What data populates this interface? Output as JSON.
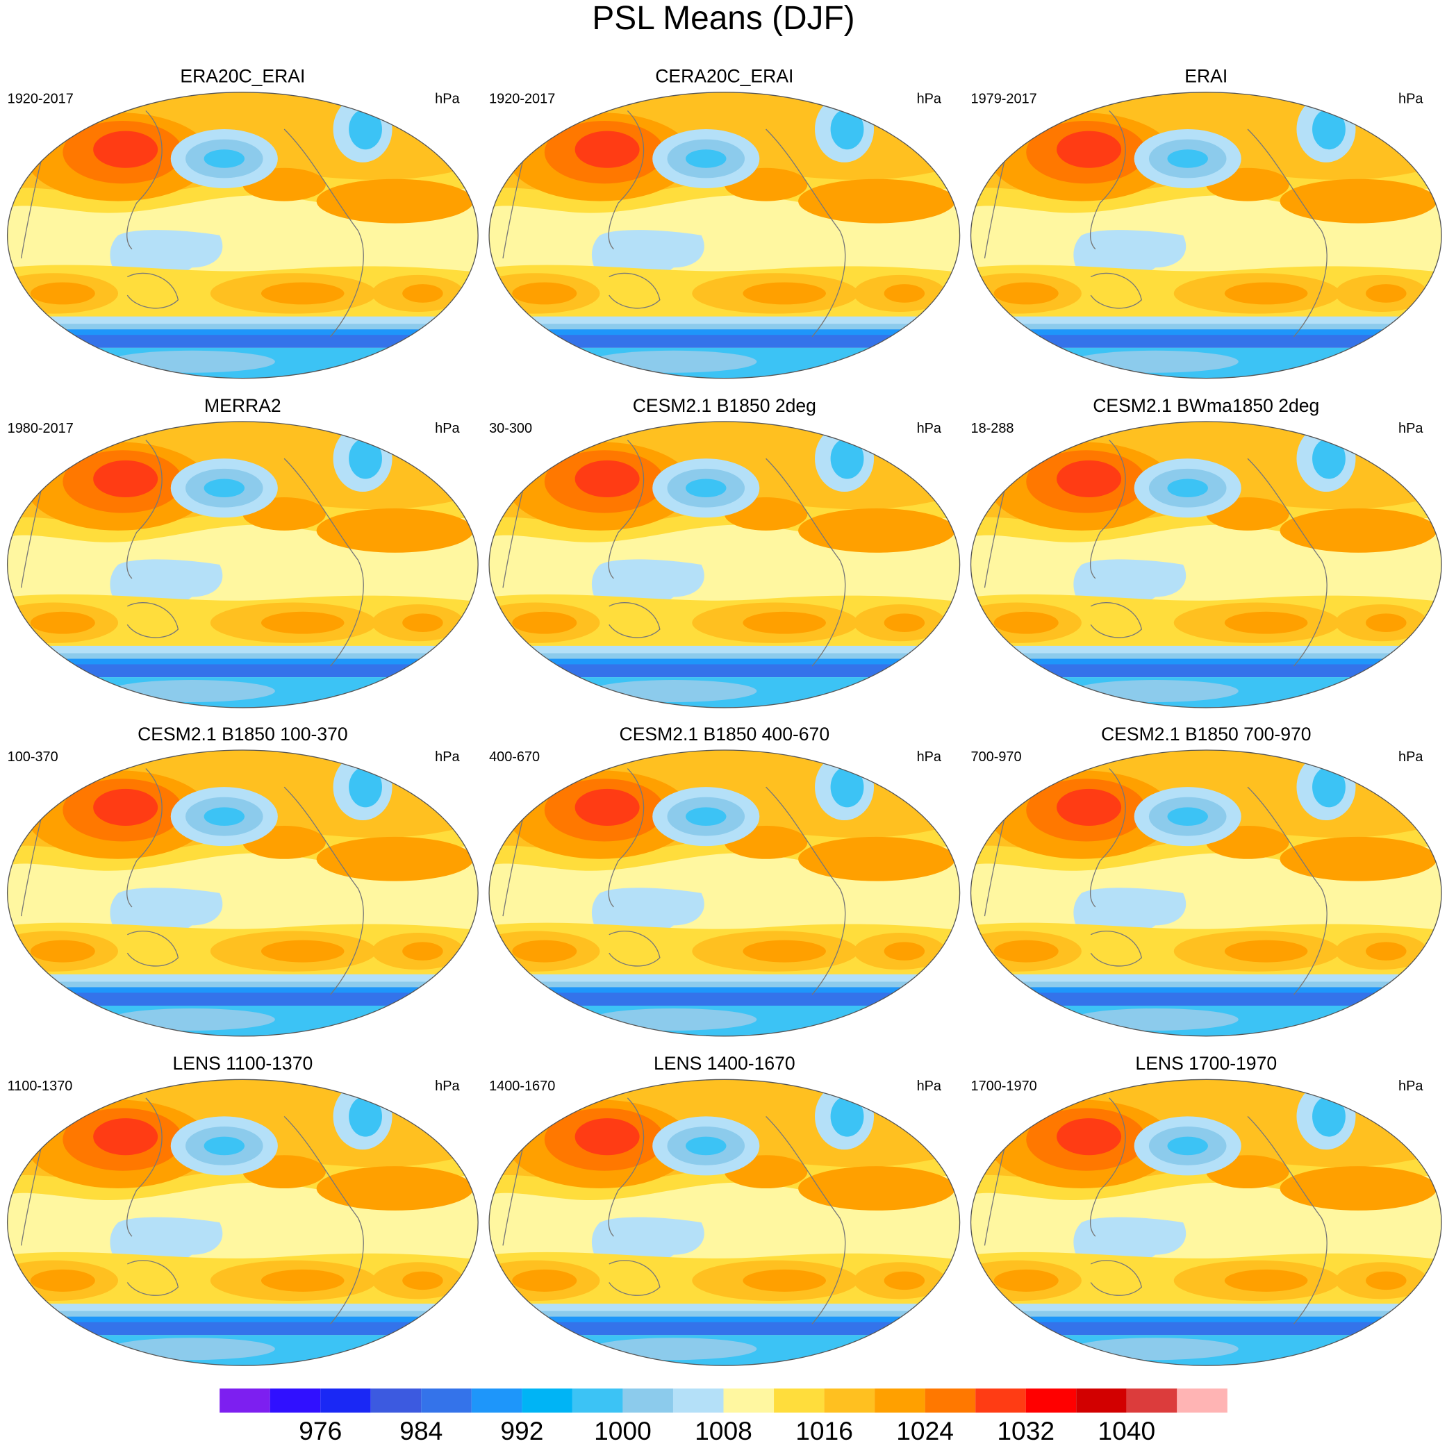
{
  "title": "PSL Means (DJF)",
  "panels": [
    {
      "title": "ERA20C_ERAI",
      "left": "1920-2017",
      "right": "hPa"
    },
    {
      "title": "CERA20C_ERAI",
      "left": "1920-2017",
      "right": "hPa"
    },
    {
      "title": "ERAI",
      "left": "1979-2017",
      "right": "hPa"
    },
    {
      "title": "MERRA2",
      "left": "1980-2017",
      "right": "hPa"
    },
    {
      "title": "CESM2.1 B1850 2deg",
      "left": "30-300",
      "right": "hPa"
    },
    {
      "title": "CESM2.1 BWma1850 2deg",
      "left": "18-288",
      "right": "hPa"
    },
    {
      "title": "CESM2.1 B1850 100-370",
      "left": "100-370",
      "right": "hPa"
    },
    {
      "title": "CESM2.1 B1850 400-670",
      "left": "400-670",
      "right": "hPa"
    },
    {
      "title": "CESM2.1 B1850 700-970",
      "left": "700-970",
      "right": "hPa"
    },
    {
      "title": "LENS 1100-1370",
      "left": "1100-1370",
      "right": "hPa"
    },
    {
      "title": "LENS 1400-1670",
      "left": "1400-1670",
      "right": "hPa"
    },
    {
      "title": "LENS 1700-1970",
      "left": "1700-1970",
      "right": "hPa"
    }
  ],
  "colorbar": {
    "levels": [
      976,
      984,
      992,
      1000,
      1008,
      1016,
      1024,
      1032,
      1040
    ],
    "colors": [
      "#7d1ff0",
      "#3010ff",
      "#1a28f5",
      "#3c5ae0",
      "#3473ea",
      "#1e96fa",
      "#00b4f5",
      "#3cc3f5",
      "#8ccbec",
      "#b4e0f8",
      "#fff7a0",
      "#ffdd3c",
      "#ffc020",
      "#ffa000",
      "#ff7800",
      "#ff3c14",
      "#ff0000",
      "#d20000",
      "#dc3c3c",
      "#ffb4b4"
    ]
  }
}
